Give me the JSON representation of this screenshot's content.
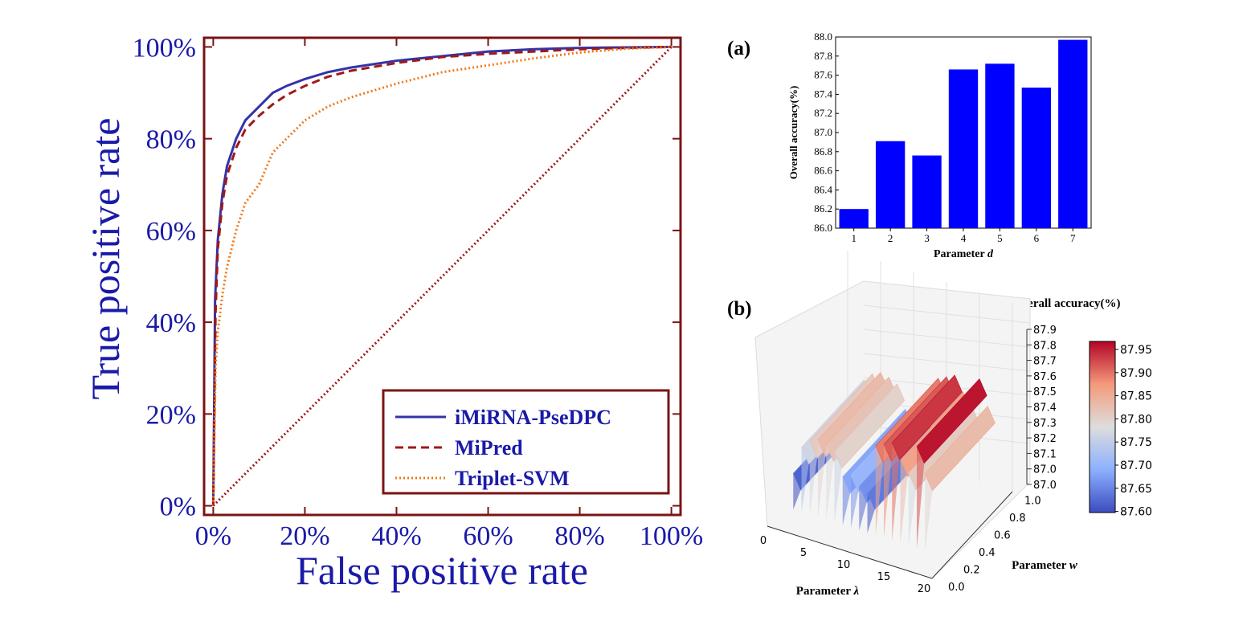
{
  "roc": {
    "type": "line",
    "xlabel": "False positive rate",
    "ylabel": "True positive rate",
    "x_ticks": [
      "0%",
      "20%",
      "40%",
      "60%",
      "80%",
      "100%"
    ],
    "y_ticks": [
      "0%",
      "20%",
      "40%",
      "60%",
      "80%",
      "100%"
    ],
    "xlim": [
      -0.02,
      1.02
    ],
    "ylim": [
      -0.02,
      1.02
    ],
    "legend_position": "lower-right",
    "series": [
      {
        "name": "iMiRNA-PseDPC",
        "color": "#3333a8",
        "style": "solid",
        "x": [
          0,
          0.004,
          0.01,
          0.02,
          0.03,
          0.05,
          0.07,
          0.1,
          0.13,
          0.16,
          0.2,
          0.25,
          0.3,
          0.4,
          0.5,
          0.6,
          0.7,
          0.8,
          0.9,
          1.0
        ],
        "y": [
          0,
          0.45,
          0.58,
          0.68,
          0.74,
          0.8,
          0.84,
          0.87,
          0.9,
          0.915,
          0.93,
          0.945,
          0.955,
          0.97,
          0.98,
          0.99,
          0.995,
          0.998,
          0.999,
          1.0
        ]
      },
      {
        "name": "MiPred",
        "color": "#a01818",
        "style": "dashed",
        "x": [
          0,
          0.005,
          0.01,
          0.02,
          0.03,
          0.05,
          0.07,
          0.1,
          0.13,
          0.16,
          0.2,
          0.25,
          0.3,
          0.4,
          0.5,
          0.6,
          0.7,
          0.8,
          0.9,
          1.0
        ],
        "y": [
          0,
          0.42,
          0.56,
          0.66,
          0.72,
          0.78,
          0.82,
          0.85,
          0.875,
          0.895,
          0.915,
          0.935,
          0.948,
          0.965,
          0.978,
          0.985,
          0.99,
          0.995,
          0.998,
          1.0
        ]
      },
      {
        "name": "Triplet-SVM",
        "color": "#f07a1a",
        "style": "dotted",
        "x": [
          0,
          0.005,
          0.01,
          0.02,
          0.03,
          0.05,
          0.07,
          0.1,
          0.13,
          0.16,
          0.2,
          0.25,
          0.3,
          0.4,
          0.5,
          0.6,
          0.7,
          0.8,
          0.9,
          1.0
        ],
        "y": [
          0,
          0.3,
          0.38,
          0.46,
          0.52,
          0.6,
          0.66,
          0.7,
          0.77,
          0.8,
          0.84,
          0.87,
          0.89,
          0.92,
          0.945,
          0.96,
          0.975,
          0.988,
          0.996,
          1.0
        ]
      },
      {
        "name": "",
        "color": "#a01818",
        "style": "dotted",
        "x": [
          0,
          1.0
        ],
        "y": [
          0,
          1.0
        ]
      }
    ]
  },
  "panel_a": {
    "type": "bar",
    "label": "(a)",
    "xlabel": "Parameter ",
    "xlabel_symbol": "d",
    "ylabel": "Overall accuracy(%)",
    "categories": [
      "1",
      "2",
      "3",
      "4",
      "5",
      "6",
      "7"
    ],
    "values": [
      86.2,
      86.91,
      86.76,
      87.66,
      87.72,
      87.47,
      87.97
    ],
    "ylim": [
      86.0,
      88.0
    ],
    "y_ticks": [
      "86.0",
      "86.2",
      "86.4",
      "86.6",
      "86.8",
      "87.0",
      "87.2",
      "87.4",
      "87.6",
      "87.8",
      "88.0"
    ],
    "bar_color": "#0000ff"
  },
  "panel_b": {
    "type": "surface",
    "label": "(b)",
    "title": "Overall accuracy(%)",
    "xlabel": "Parameter ",
    "xlabel_symbol": "λ",
    "ylabel": "Parameter ",
    "ylabel_symbol": "w",
    "x_ticks": [
      "0",
      "5",
      "10",
      "15",
      "20"
    ],
    "y_ticks": [
      "0.0",
      "0.2",
      "0.4",
      "0.6",
      "0.8",
      "1.0"
    ],
    "z_ticks": [
      "87.0",
      "87.0",
      "87.1",
      "87.2",
      "87.3",
      "87.4",
      "87.5",
      "87.6",
      "87.7",
      "87.8",
      "87.9"
    ],
    "colorbar_ticks": [
      "87.95",
      "87.90",
      "87.85",
      "87.80",
      "87.75",
      "87.70",
      "87.65",
      "87.60"
    ],
    "colormap": "coolwarm",
    "zlim": [
      87.6,
      87.95
    ],
    "ridges": [
      {
        "lambda": 1,
        "value": 87.62
      },
      {
        "lambda": 2,
        "value": 87.76
      },
      {
        "lambda": 3,
        "value": 87.8
      },
      {
        "lambda": 4,
        "value": 87.82
      },
      {
        "lambda": 5,
        "value": 87.81
      },
      {
        "lambda": 6,
        "value": 87.79
      },
      {
        "lambda": 7,
        "value": 87.68
      },
      {
        "lambda": 8,
        "value": 87.7
      },
      {
        "lambda": 9,
        "value": 87.66
      },
      {
        "lambda": 10,
        "value": 87.64
      },
      {
        "lambda": 11,
        "value": 87.88
      },
      {
        "lambda": 12,
        "value": 87.9
      },
      {
        "lambda": 13,
        "value": 87.92
      },
      {
        "lambda": 14,
        "value": 87.85
      },
      {
        "lambda": 15,
        "value": 87.8
      },
      {
        "lambda": 16,
        "value": 87.94
      },
      {
        "lambda": 17,
        "value": 87.82
      }
    ]
  }
}
